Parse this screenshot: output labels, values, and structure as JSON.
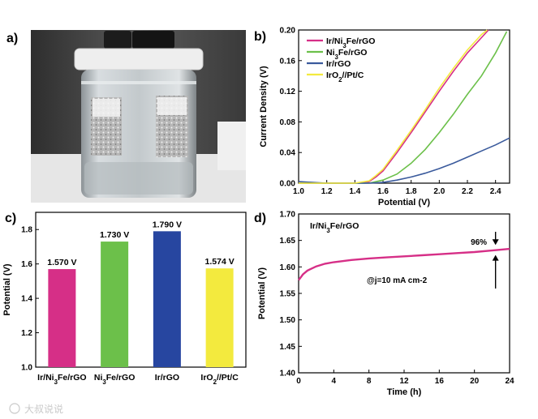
{
  "colors": {
    "ir_ni3fe_rgo": "#d62f87",
    "ni3fe_rgo": "#6cc04a",
    "ir_rgo": "#3a5a9c",
    "iro2_pt_c": "#f3ea3e",
    "frame": "#000000"
  },
  "panel_labels": [
    "a)",
    "b)",
    "c)",
    "d)"
  ],
  "watermark": "大叔说说",
  "chart_data": [
    {
      "panel": "b",
      "type": "line",
      "xlabel": "Potential (V)",
      "ylabel": "Current Density (V)",
      "xlim": [
        1.0,
        2.5
      ],
      "ylim": [
        0.0,
        0.2
      ],
      "xticks": [
        "1.0",
        "1.2",
        "1.4",
        "1.6",
        "1.8",
        "2.0",
        "2.2",
        "2.4"
      ],
      "yticks": [
        "0.00",
        "0.04",
        "0.08",
        "0.12",
        "0.16",
        "0.20"
      ],
      "legend_position": "top-left",
      "series": [
        {
          "name": "Ir/Ni3Fe/rGO",
          "color": "#d62f87",
          "x": [
            1.0,
            1.2,
            1.4,
            1.5,
            1.55,
            1.6,
            1.7,
            1.8,
            1.9,
            2.0,
            2.1,
            2.2,
            2.3,
            2.35
          ],
          "y": [
            0.0,
            0.0,
            0.0,
            0.002,
            0.008,
            0.016,
            0.04,
            0.066,
            0.093,
            0.12,
            0.146,
            0.17,
            0.19,
            0.2
          ]
        },
        {
          "name": "Ni3Fe/rGO",
          "color": "#6cc04a",
          "x": [
            1.0,
            1.2,
            1.4,
            1.5,
            1.6,
            1.7,
            1.8,
            1.9,
            2.0,
            2.1,
            2.2,
            2.3,
            2.4,
            2.48
          ],
          "y": [
            0.0,
            0.0,
            0.0,
            0.0,
            0.004,
            0.012,
            0.026,
            0.044,
            0.066,
            0.09,
            0.116,
            0.14,
            0.17,
            0.198
          ]
        },
        {
          "name": "Ir/rGO",
          "color": "#3a5a9c",
          "x": [
            1.0,
            1.2,
            1.4,
            1.5,
            1.6,
            1.7,
            1.8,
            1.9,
            2.0,
            2.1,
            2.2,
            2.3,
            2.4,
            2.5
          ],
          "y": [
            0.002,
            0.0,
            0.0,
            0.0,
            0.001,
            0.004,
            0.008,
            0.013,
            0.019,
            0.026,
            0.034,
            0.042,
            0.05,
            0.059
          ]
        },
        {
          "name": "IrO2//Pt/C",
          "color": "#f3ea3e",
          "x": [
            1.0,
            1.2,
            1.4,
            1.5,
            1.55,
            1.6,
            1.7,
            1.8,
            1.9,
            2.0,
            2.1,
            2.2,
            2.3,
            2.34
          ],
          "y": [
            0.0,
            0.0,
            0.0,
            0.003,
            0.01,
            0.018,
            0.043,
            0.069,
            0.096,
            0.124,
            0.15,
            0.174,
            0.194,
            0.2
          ]
        }
      ]
    },
    {
      "panel": "c",
      "type": "bar",
      "ylabel": "Potential (V)",
      "ylim": [
        1.0,
        1.9
      ],
      "yticks": [
        "1.0",
        "1.2",
        "1.4",
        "1.6",
        "1.8"
      ],
      "categories": [
        "Ir/Ni3Fe/rGO",
        "Ni3Fe/rGO",
        "Ir/rGO",
        "IrO2//Pt/C"
      ],
      "values": [
        1.57,
        1.73,
        1.79,
        1.574
      ],
      "data_labels": [
        "1.570 V",
        "1.730 V",
        "1.790 V",
        "1.574 V"
      ],
      "colors": [
        "#d62f87",
        "#6cc04a",
        "#2746a0",
        "#f3ea3e"
      ]
    },
    {
      "panel": "d",
      "type": "line",
      "xlabel": "Time (h)",
      "ylabel": "Potential (V)",
      "xlim": [
        0,
        24
      ],
      "ylim": [
        1.4,
        1.7
      ],
      "xticks": [
        "0",
        "4",
        "8",
        "12",
        "16",
        "20",
        "24"
      ],
      "yticks": [
        "1.40",
        "1.45",
        "1.50",
        "1.55",
        "1.60",
        "1.65",
        "1.70"
      ],
      "series": [
        {
          "name": "Ir/Ni3Fe/rGO",
          "color": "#d62f87",
          "x": [
            0,
            0.5,
            1,
            2,
            3,
            4,
            6,
            8,
            10,
            12,
            14,
            16,
            18,
            20,
            22,
            24
          ],
          "y": [
            1.575,
            1.586,
            1.593,
            1.601,
            1.606,
            1.609,
            1.613,
            1.616,
            1.618,
            1.62,
            1.622,
            1.624,
            1.626,
            1.628,
            1.631,
            1.634
          ]
        }
      ],
      "annotations": {
        "series_label": "Ir/Ni3Fe/rGO",
        "condition": "@j=10 mA cm-2",
        "retention": "96%"
      }
    }
  ]
}
